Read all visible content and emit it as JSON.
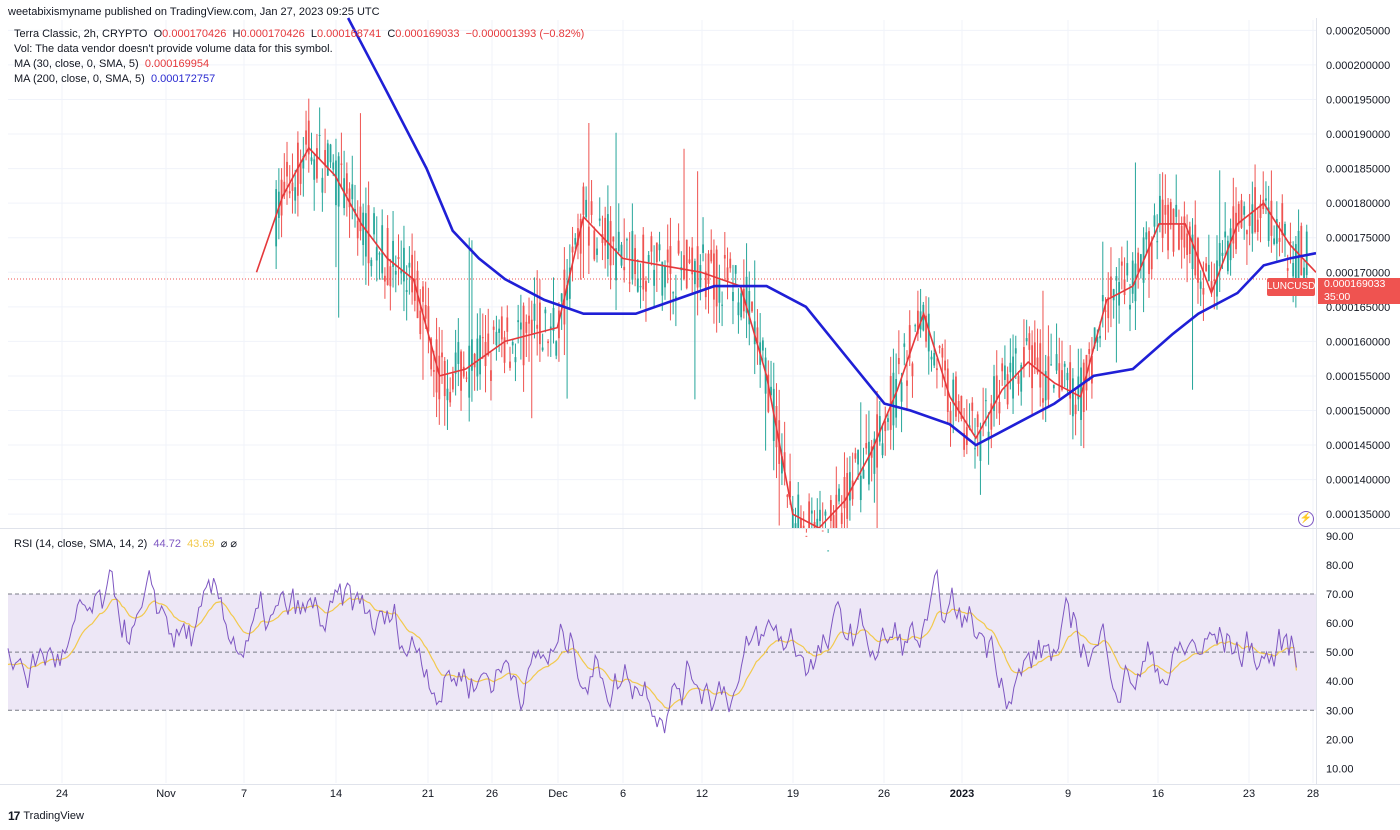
{
  "header": {
    "author": "weetabixismyname",
    "text": "published on TradingView.com, Jan 27, 2023 09:25 UTC"
  },
  "legend": {
    "symbol": "Terra Classic, 2h, CRYPTO",
    "open_label": "O",
    "open": "0.000170426",
    "high_label": "H",
    "high": "0.000170426",
    "low_label": "L",
    "low": "0.000168741",
    "close_label": "C",
    "close": "0.000169033",
    "change": "−0.000001393 (−0.82%)",
    "vol_text": "Vol: The data vendor doesn't provide volume data for this symbol.",
    "ma30_label": "MA (30, close, 0, SMA, 5)",
    "ma30_value": "0.000169954",
    "ma200_label": "MA (200, close, 0, SMA, 5)",
    "ma200_value": "0.000172757"
  },
  "rsi_legend": {
    "label": "RSI (14, close, SMA, 14, 2)",
    "rsi": "44.72",
    "rsi_ma": "43.69",
    "extra": "⌀ ⌀"
  },
  "price_tag": {
    "ticker": "LUNCUSD",
    "price": "0.000169033",
    "countdown": "35:00"
  },
  "footer": {
    "brand": "TradingView",
    "mark": "17"
  },
  "colors": {
    "up": "#26a69a",
    "down": "#ef5350",
    "ma30": "#e5383b",
    "ma200": "#1f1fd6",
    "rsi": "#7e57c2",
    "rsi_ma": "#f2c94c",
    "band": "#ede7f6"
  },
  "chart_data": [
    {
      "type": "candlestick",
      "title": "Terra Classic, 2h, CRYPTO",
      "y_ticks": [
        "0.000205000",
        "0.000200000",
        "0.000195000",
        "0.000190000",
        "0.000185000",
        "0.000180000",
        "0.000175000",
        "0.000170000",
        "0.000165000",
        "0.000160000",
        "0.000155000",
        "0.000150000",
        "0.000145000",
        "0.000140000",
        "0.000135000"
      ],
      "ylim": [
        0.000133,
        0.0002065
      ],
      "x_tick_labels": [
        "24",
        "Nov",
        "7",
        "14",
        "21",
        "26",
        "Dec",
        "6",
        "12",
        "19",
        "26",
        "2023",
        "9",
        "16",
        "23",
        "28"
      ],
      "last_price": 0.000169033,
      "series": [
        {
          "name": "MA (30, close, 0, SMA, 5)",
          "points": [
            [
              0.19,
              0.00017
            ],
            [
              0.21,
              0.000181
            ],
            [
              0.23,
              0.000188
            ],
            [
              0.25,
              0.000184
            ],
            [
              0.27,
              0.000177
            ],
            [
              0.29,
              0.000172
            ],
            [
              0.31,
              0.000169
            ],
            [
              0.33,
              0.000155
            ],
            [
              0.35,
              0.000156
            ],
            [
              0.38,
              0.00016
            ],
            [
              0.42,
              0.000162
            ],
            [
              0.44,
              0.000178
            ],
            [
              0.47,
              0.000172
            ],
            [
              0.5,
              0.000171
            ],
            [
              0.53,
              0.00017
            ],
            [
              0.56,
              0.000168
            ],
            [
              0.58,
              0.000155
            ],
            [
              0.6,
              0.000135
            ],
            [
              0.62,
              0.000131
            ],
            [
              0.64,
              0.000137
            ],
            [
              0.66,
              0.000144
            ],
            [
              0.68,
              0.000153
            ],
            [
              0.7,
              0.000164
            ],
            [
              0.72,
              0.000152
            ],
            [
              0.74,
              0.000146
            ],
            [
              0.76,
              0.000153
            ],
            [
              0.78,
              0.000157
            ],
            [
              0.8,
              0.000154
            ],
            [
              0.82,
              0.000152
            ],
            [
              0.84,
              0.000166
            ],
            [
              0.86,
              0.000168
            ],
            [
              0.88,
              0.000177
            ],
            [
              0.9,
              0.000177
            ],
            [
              0.92,
              0.000167
            ],
            [
              0.94,
              0.000177
            ],
            [
              0.96,
              0.00018
            ],
            [
              0.98,
              0.000174
            ],
            [
              1.0,
              0.00017
            ]
          ]
        },
        {
          "name": "MA (200, close, 0, SMA, 5)",
          "points": [
            [
              0.26,
              0.000207
            ],
            [
              0.29,
              0.000196
            ],
            [
              0.32,
              0.000185
            ],
            [
              0.34,
              0.000176
            ],
            [
              0.36,
              0.000172
            ],
            [
              0.38,
              0.000169
            ],
            [
              0.41,
              0.000166
            ],
            [
              0.44,
              0.000164
            ],
            [
              0.48,
              0.000164
            ],
            [
              0.51,
              0.000166
            ],
            [
              0.54,
              0.000168
            ],
            [
              0.58,
              0.000168
            ],
            [
              0.61,
              0.000165
            ],
            [
              0.64,
              0.000158
            ],
            [
              0.67,
              0.000151
            ],
            [
              0.69,
              0.00015
            ],
            [
              0.72,
              0.000148
            ],
            [
              0.74,
              0.000145
            ],
            [
              0.77,
              0.000148
            ],
            [
              0.8,
              0.000151
            ],
            [
              0.83,
              0.000155
            ],
            [
              0.86,
              0.000156
            ],
            [
              0.89,
              0.000161
            ],
            [
              0.91,
              0.000164
            ],
            [
              0.94,
              0.000167
            ],
            [
              0.96,
              0.000171
            ],
            [
              0.98,
              0.000172
            ],
            [
              1.0,
              0.000172757
            ]
          ]
        }
      ]
    },
    {
      "type": "line",
      "title": "RSI (14, close, SMA, 14, 2)",
      "y_ticks": [
        "90.00",
        "80.00",
        "70.00",
        "60.00",
        "50.00",
        "40.00",
        "30.00",
        "20.00",
        "10.00"
      ],
      "ylim": [
        5,
        92
      ],
      "bands": [
        30,
        50,
        70
      ],
      "series": [
        {
          "name": "RSI",
          "last": 44.72
        },
        {
          "name": "RSI-based MA",
          "last": 43.69
        }
      ]
    }
  ]
}
